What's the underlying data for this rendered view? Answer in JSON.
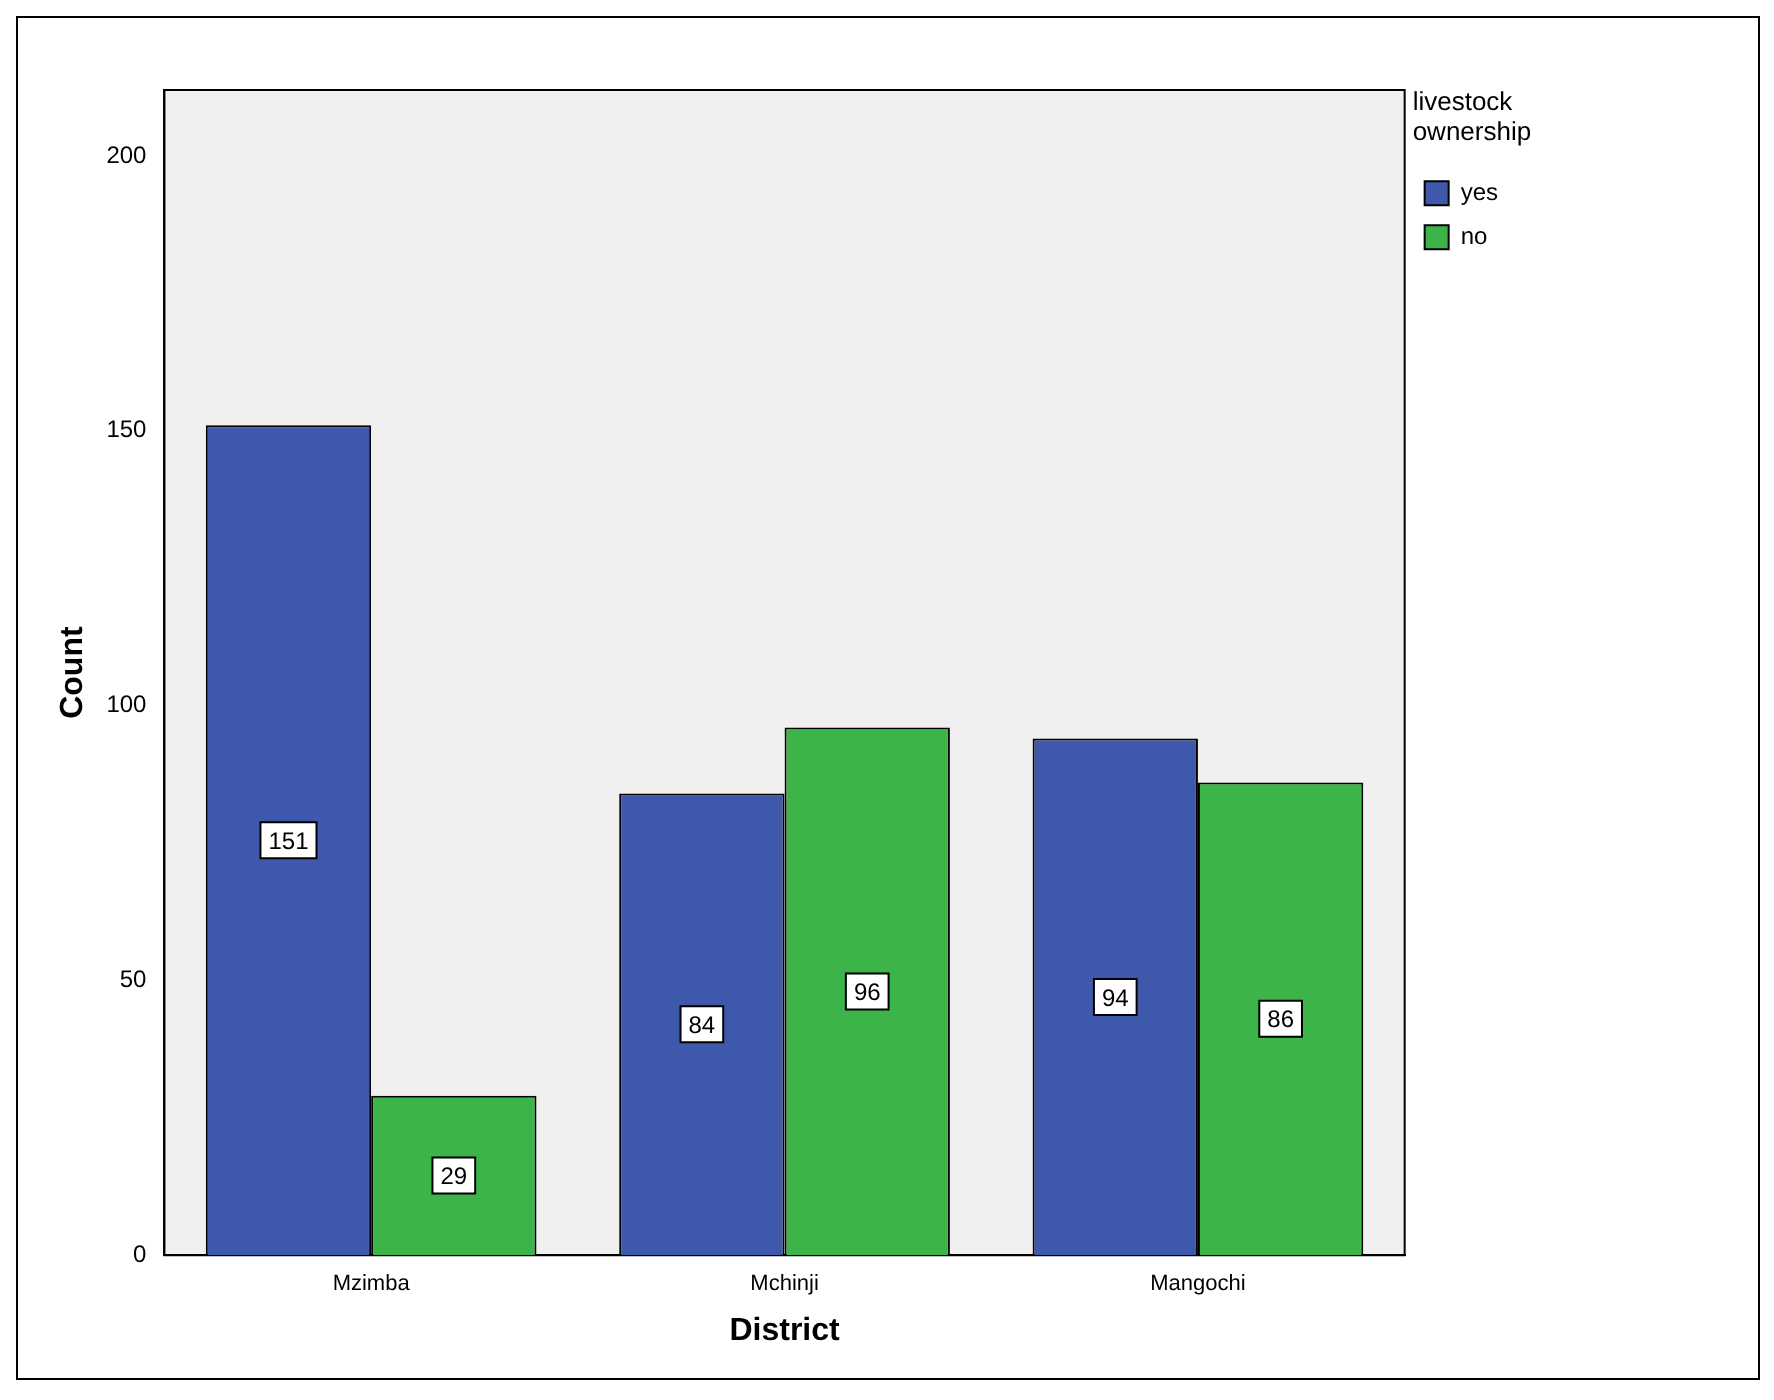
{
  "chart_data": {
    "type": "bar",
    "xlabel": "District",
    "ylabel": "Count",
    "legend_title": "livestock ownership",
    "legend": "top right",
    "categories": [
      "Mzimba",
      "Mchinji",
      "Mangochi"
    ],
    "series": [
      {
        "name": "yes",
        "color": "#3e58ac",
        "values": [
          151,
          84,
          94
        ]
      },
      {
        "name": "no",
        "color": "#3cb44a",
        "values": [
          29,
          96,
          86
        ]
      }
    ],
    "ylim": [
      0,
      212
    ],
    "yticks": [
      0,
      50,
      100,
      150,
      200
    ],
    "grid": false,
    "data_labels": true
  }
}
